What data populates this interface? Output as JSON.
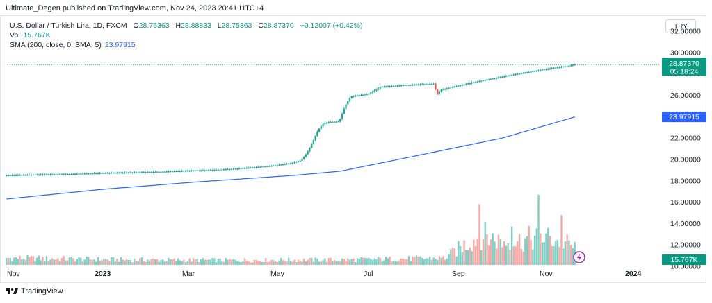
{
  "header": {
    "published_line": "Ultimate_Degen published on TradingView.com, Nov 24, 2023 20:41 UTC+4"
  },
  "legend": {
    "symbol": "U.S. Dollar / Turkish Lira, 1D, FXCM",
    "o_label": "O",
    "o_value": "28.75363",
    "h_label": "H",
    "h_value": "28.88833",
    "l_label": "L",
    "l_value": "28.75363",
    "c_label": "C",
    "c_value": "28.87370",
    "change": "+0.12007 (+0.42%)",
    "vol_label": "Vol",
    "vol_value": "15.767K",
    "sma_label": "SMA (200, close, 0, SMA, 5)",
    "sma_value": "23.97915"
  },
  "currency_button": "TRY",
  "price_badge": {
    "price": "28.87370",
    "countdown": "05:18:24"
  },
  "sma_badge": "23.97915",
  "volume_badge": "15.767K",
  "footer": {
    "brand": "TradingView"
  },
  "colors": {
    "up": "#26a69a",
    "down": "#ef5350",
    "sma": "#2962ff",
    "vol_up": "#7ecfc4",
    "vol_down": "#f7a9a7",
    "price_badge": "#089981"
  },
  "icons": {
    "dividends_marker": "lightning-icon",
    "brand_logo": "tradingview-logo-icon"
  },
  "chart_data": {
    "type": "candlestick",
    "ylim": [
      10,
      33.5
    ],
    "y_ticks": [
      "32.00000",
      "30.00000",
      "28.00000",
      "26.00000",
      "24.00000",
      "22.00000",
      "20.00000",
      "18.00000",
      "16.00000",
      "14.00000",
      "12.00000",
      "10.00000"
    ],
    "x_ticks": [
      "Nov",
      "2023",
      "Mar",
      "May",
      "Jul",
      "Sep",
      "Nov",
      "2024"
    ],
    "price_path": [
      [
        0,
        18.5
      ],
      [
        10,
        18.55
      ],
      [
        20,
        18.6
      ],
      [
        30,
        18.62
      ],
      [
        40,
        18.66
      ],
      [
        50,
        18.72
      ],
      [
        60,
        18.76
      ],
      [
        70,
        18.8
      ],
      [
        80,
        18.84
      ],
      [
        90,
        18.9
      ],
      [
        100,
        18.96
      ],
      [
        110,
        19.02
      ],
      [
        120,
        19.12
      ],
      [
        130,
        19.25
      ],
      [
        140,
        19.4
      ],
      [
        150,
        19.65
      ],
      [
        155,
        19.9
      ],
      [
        158,
        20.6
      ],
      [
        161,
        21.6
      ],
      [
        164,
        22.8
      ],
      [
        167,
        23.4
      ],
      [
        170,
        23.5
      ],
      [
        175,
        23.55
      ],
      [
        178,
        25.0
      ],
      [
        181,
        25.9
      ],
      [
        185,
        26.0
      ],
      [
        190,
        26.1
      ],
      [
        195,
        26.6
      ],
      [
        197,
        26.8
      ],
      [
        205,
        26.9
      ],
      [
        215,
        27.0
      ],
      [
        225,
        27.1
      ],
      [
        226,
        26.0
      ],
      [
        228,
        26.5
      ],
      [
        235,
        26.8
      ],
      [
        245,
        27.2
      ],
      [
        255,
        27.55
      ],
      [
        265,
        27.9
      ],
      [
        275,
        28.2
      ],
      [
        285,
        28.5
      ],
      [
        295,
        28.75
      ],
      [
        298,
        28.87
      ]
    ],
    "sma_path": [
      [
        0,
        16.3
      ],
      [
        50,
        17.2
      ],
      [
        100,
        17.9
      ],
      [
        150,
        18.5
      ],
      [
        175,
        18.9
      ],
      [
        200,
        19.8
      ],
      [
        230,
        20.9
      ],
      [
        260,
        22.0
      ],
      [
        298,
        23.98
      ]
    ],
    "volume_profile": [
      [
        0,
        0.12
      ],
      [
        60,
        0.09
      ],
      [
        120,
        0.08
      ],
      [
        180,
        0.09
      ],
      [
        230,
        0.12
      ],
      [
        240,
        0.35
      ],
      [
        250,
        0.52
      ],
      [
        260,
        0.4
      ],
      [
        270,
        0.42
      ],
      [
        280,
        0.5
      ],
      [
        292,
        0.4
      ],
      [
        298,
        0.3
      ]
    ],
    "volume_spikes": [
      [
        248,
        0.95
      ],
      [
        265,
        0.6
      ],
      [
        279,
        1.1
      ],
      [
        291,
        0.78
      ]
    ]
  }
}
